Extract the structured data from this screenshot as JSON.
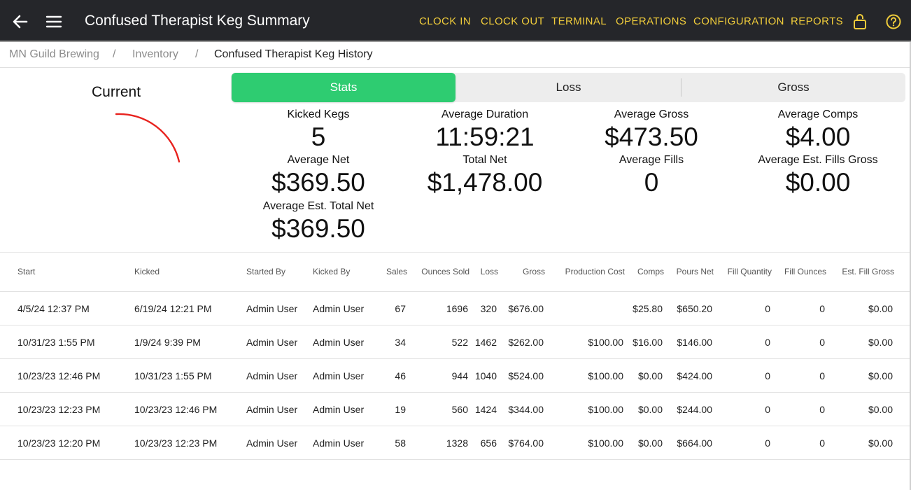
{
  "app": {
    "title": "Confused Therapist Keg Summary"
  },
  "nav": {
    "items": [
      "CLOCK IN",
      "CLOCK OUT",
      "TERMINAL",
      "OPERATIONS",
      "CONFIGURATION",
      "REPORTS"
    ],
    "icons": [
      "lock-icon",
      "help-icon"
    ]
  },
  "breadcrumb": {
    "items": [
      "MN Guild Brewing",
      "Inventory",
      "Confused Therapist Keg History"
    ],
    "separator": "/"
  },
  "gauge": {
    "label": "Current",
    "color": "#e8221e"
  },
  "tabs": {
    "items": [
      "Stats",
      "Loss",
      "Gross"
    ],
    "active": "Stats",
    "active_color": "#2ecc71"
  },
  "stats": {
    "kicked_kegs": {
      "label": "Kicked Kegs",
      "value": "5"
    },
    "average_net": {
      "label": "Average Net",
      "value": "$369.50"
    },
    "average_est_total_net": {
      "label": "Average Est. Total Net",
      "value": "$369.50"
    },
    "average_duration": {
      "label": "Average Duration",
      "value": "11:59:21"
    },
    "total_net": {
      "label": "Total Net",
      "value": "$1,478.00"
    },
    "average_gross": {
      "label": "Average Gross",
      "value": "$473.50"
    },
    "average_fills": {
      "label": "Average Fills",
      "value": "0"
    },
    "average_comps": {
      "label": "Average Comps",
      "value": "$4.00"
    },
    "average_est_fills_gross": {
      "label": "Average Est. Fills Gross",
      "value": "$0.00"
    }
  },
  "table": {
    "headers": [
      "Start",
      "Kicked",
      "Started By",
      "Kicked By",
      "Sales",
      "Ounces Sold",
      "Loss",
      "Gross",
      "Production Cost",
      "Comps",
      "Pours Net",
      "Fill Quantity",
      "Fill Ounces",
      "Est. Fill Gross"
    ],
    "rows": [
      [
        "4/5/24 12:37 PM",
        "6/19/24 12:21 PM",
        "Admin User",
        "Admin User",
        "67",
        "1696",
        "320",
        "$676.00",
        "",
        "$25.80",
        "$650.20",
        "0",
        "0",
        "$0.00"
      ],
      [
        "10/31/23 1:55 PM",
        "1/9/24 9:39 PM",
        "Admin User",
        "Admin User",
        "34",
        "522",
        "1462",
        "$262.00",
        "$100.00",
        "$16.00",
        "$146.00",
        "0",
        "0",
        "$0.00"
      ],
      [
        "10/23/23 12:46 PM",
        "10/31/23 1:55 PM",
        "Admin User",
        "Admin User",
        "46",
        "944",
        "1040",
        "$524.00",
        "$100.00",
        "$0.00",
        "$424.00",
        "0",
        "0",
        "$0.00"
      ],
      [
        "10/23/23 12:23 PM",
        "10/23/23 12:46 PM",
        "Admin User",
        "Admin User",
        "19",
        "560",
        "1424",
        "$344.00",
        "$100.00",
        "$0.00",
        "$244.00",
        "0",
        "0",
        "$0.00"
      ],
      [
        "10/23/23 12:20 PM",
        "10/23/23 12:23 PM",
        "Admin User",
        "Admin User",
        "58",
        "1328",
        "656",
        "$764.00",
        "$100.00",
        "$0.00",
        "$664.00",
        "0",
        "0",
        "$0.00"
      ]
    ]
  }
}
